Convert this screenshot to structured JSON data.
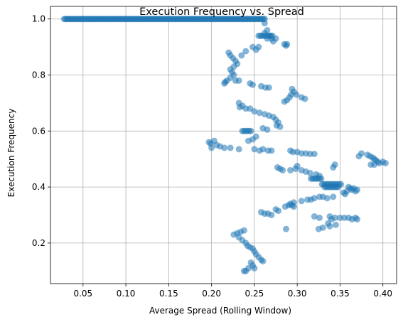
{
  "chart_data": {
    "type": "scatter",
    "title": "Execution Frequency vs. Spread",
    "xlabel": "Average Spread (Rolling Window)",
    "ylabel": "Execution Frequency",
    "xlim": [
      0.012,
      0.416
    ],
    "ylim": [
      0.055,
      1.045
    ],
    "xticks": [
      "0.05",
      "0.10",
      "0.15",
      "0.20",
      "0.25",
      "0.30",
      "0.35",
      "0.40"
    ],
    "yticks": [
      "0.2",
      "0.4",
      "0.6",
      "0.8",
      "1.0"
    ],
    "grid": true,
    "legend": "none",
    "marker_color": "#1f77b4",
    "marker_alpha": 0.55,
    "series": [
      {
        "segments": [
          {
            "x0": 0.028,
            "x1": 0.262,
            "y": 1.0,
            "step": 0.0015
          },
          {
            "x0": 0.255,
            "x1": 0.272,
            "y": 0.94,
            "step": 0.002
          },
          {
            "x0": 0.236,
            "x1": 0.246,
            "y": 0.6,
            "step": 0.002
          },
          {
            "x0": 0.316,
            "x1": 0.328,
            "y": 0.43,
            "step": 0.002
          },
          {
            "x0": 0.329,
            "x1": 0.352,
            "y": 0.41,
            "step": 0.002
          },
          {
            "x0": 0.332,
            "x1": 0.348,
            "y": 0.4,
            "step": 0.002
          }
        ],
        "points": [
          [
            0.262,
            0.985
          ],
          [
            0.265,
            0.96
          ],
          [
            0.262,
            0.95
          ],
          [
            0.268,
            0.94
          ],
          [
            0.265,
            0.93
          ],
          [
            0.27,
            0.93
          ],
          [
            0.272,
            0.92
          ],
          [
            0.275,
            0.93
          ],
          [
            0.285,
            0.91
          ],
          [
            0.288,
            0.91
          ],
          [
            0.287,
            0.905
          ],
          [
            0.248,
            0.9
          ],
          [
            0.255,
            0.9
          ],
          [
            0.252,
            0.89
          ],
          [
            0.24,
            0.885
          ],
          [
            0.235,
            0.87
          ],
          [
            0.22,
            0.88
          ],
          [
            0.222,
            0.87
          ],
          [
            0.225,
            0.86
          ],
          [
            0.228,
            0.85
          ],
          [
            0.23,
            0.84
          ],
          [
            0.226,
            0.83
          ],
          [
            0.222,
            0.82
          ],
          [
            0.224,
            0.81
          ],
          [
            0.226,
            0.8
          ],
          [
            0.222,
            0.79
          ],
          [
            0.218,
            0.78
          ],
          [
            0.216,
            0.775
          ],
          [
            0.215,
            0.77
          ],
          [
            0.228,
            0.78
          ],
          [
            0.232,
            0.78
          ],
          [
            0.245,
            0.77
          ],
          [
            0.248,
            0.765
          ],
          [
            0.258,
            0.76
          ],
          [
            0.263,
            0.755
          ],
          [
            0.267,
            0.755
          ],
          [
            0.294,
            0.75
          ],
          [
            0.296,
            0.74
          ],
          [
            0.293,
            0.73
          ],
          [
            0.299,
            0.73
          ],
          [
            0.291,
            0.72
          ],
          [
            0.288,
            0.71
          ],
          [
            0.285,
            0.705
          ],
          [
            0.305,
            0.72
          ],
          [
            0.309,
            0.715
          ],
          [
            0.232,
            0.7
          ],
          [
            0.236,
            0.69
          ],
          [
            0.233,
            0.685
          ],
          [
            0.24,
            0.68
          ],
          [
            0.245,
            0.68
          ],
          [
            0.25,
            0.67
          ],
          [
            0.256,
            0.665
          ],
          [
            0.262,
            0.66
          ],
          [
            0.267,
            0.655
          ],
          [
            0.272,
            0.65
          ],
          [
            0.275,
            0.64
          ],
          [
            0.278,
            0.63
          ],
          [
            0.276,
            0.62
          ],
          [
            0.28,
            0.615
          ],
          [
            0.26,
            0.61
          ],
          [
            0.265,
            0.605
          ],
          [
            0.252,
            0.58
          ],
          [
            0.248,
            0.57
          ],
          [
            0.243,
            0.565
          ],
          [
            0.197,
            0.56
          ],
          [
            0.199,
            0.555
          ],
          [
            0.203,
            0.565
          ],
          [
            0.206,
            0.55
          ],
          [
            0.2,
            0.54
          ],
          [
            0.21,
            0.545
          ],
          [
            0.215,
            0.54
          ],
          [
            0.222,
            0.54
          ],
          [
            0.232,
            0.535
          ],
          [
            0.25,
            0.535
          ],
          [
            0.256,
            0.53
          ],
          [
            0.26,
            0.535
          ],
          [
            0.266,
            0.53
          ],
          [
            0.27,
            0.53
          ],
          [
            0.292,
            0.53
          ],
          [
            0.295,
            0.525
          ],
          [
            0.3,
            0.525
          ],
          [
            0.305,
            0.52
          ],
          [
            0.31,
            0.52
          ],
          [
            0.315,
            0.518
          ],
          [
            0.32,
            0.518
          ],
          [
            0.277,
            0.47
          ],
          [
            0.28,
            0.465
          ],
          [
            0.283,
            0.46
          ],
          [
            0.292,
            0.46
          ],
          [
            0.298,
            0.465
          ],
          [
            0.3,
            0.475
          ],
          [
            0.305,
            0.46
          ],
          [
            0.31,
            0.455
          ],
          [
            0.315,
            0.45
          ],
          [
            0.322,
            0.445
          ],
          [
            0.326,
            0.44
          ],
          [
            0.342,
            0.47
          ],
          [
            0.344,
            0.48
          ],
          [
            0.36,
            0.4
          ],
          [
            0.362,
            0.395
          ],
          [
            0.364,
            0.39
          ],
          [
            0.366,
            0.395
          ],
          [
            0.368,
            0.385
          ],
          [
            0.37,
            0.39
          ],
          [
            0.354,
            0.38
          ],
          [
            0.356,
            0.375
          ],
          [
            0.358,
            0.385
          ],
          [
            0.342,
            0.365
          ],
          [
            0.335,
            0.36
          ],
          [
            0.33,
            0.365
          ],
          [
            0.326,
            0.365
          ],
          [
            0.32,
            0.36
          ],
          [
            0.316,
            0.355
          ],
          [
            0.312,
            0.355
          ],
          [
            0.305,
            0.35
          ],
          [
            0.296,
            0.345
          ],
          [
            0.292,
            0.34
          ],
          [
            0.294,
            0.335
          ],
          [
            0.29,
            0.335
          ],
          [
            0.286,
            0.33
          ],
          [
            0.296,
            0.33
          ],
          [
            0.275,
            0.32
          ],
          [
            0.278,
            0.315
          ],
          [
            0.258,
            0.31
          ],
          [
            0.262,
            0.305
          ],
          [
            0.266,
            0.305
          ],
          [
            0.27,
            0.3
          ],
          [
            0.32,
            0.295
          ],
          [
            0.326,
            0.29
          ],
          [
            0.338,
            0.295
          ],
          [
            0.34,
            0.285
          ],
          [
            0.344,
            0.29
          ],
          [
            0.35,
            0.29
          ],
          [
            0.355,
            0.29
          ],
          [
            0.36,
            0.29
          ],
          [
            0.364,
            0.285
          ],
          [
            0.368,
            0.29
          ],
          [
            0.37,
            0.285
          ],
          [
            0.336,
            0.27
          ],
          [
            0.338,
            0.26
          ],
          [
            0.345,
            0.265
          ],
          [
            0.33,
            0.255
          ],
          [
            0.325,
            0.25
          ],
          [
            0.287,
            0.25
          ],
          [
            0.375,
            0.52
          ],
          [
            0.382,
            0.515
          ],
          [
            0.385,
            0.51
          ],
          [
            0.388,
            0.505
          ],
          [
            0.39,
            0.5
          ],
          [
            0.392,
            0.495
          ],
          [
            0.394,
            0.49
          ],
          [
            0.396,
            0.485
          ],
          [
            0.4,
            0.49
          ],
          [
            0.403,
            0.485
          ],
          [
            0.386,
            0.48
          ],
          [
            0.39,
            0.48
          ],
          [
            0.372,
            0.51
          ],
          [
            0.226,
            0.23
          ],
          [
            0.23,
            0.235
          ],
          [
            0.234,
            0.24
          ],
          [
            0.238,
            0.245
          ],
          [
            0.232,
            0.22
          ],
          [
            0.236,
            0.21
          ],
          [
            0.24,
            0.2
          ],
          [
            0.242,
            0.19
          ],
          [
            0.245,
            0.185
          ],
          [
            0.248,
            0.18
          ],
          [
            0.25,
            0.17
          ],
          [
            0.252,
            0.16
          ],
          [
            0.255,
            0.15
          ],
          [
            0.258,
            0.14
          ],
          [
            0.26,
            0.135
          ],
          [
            0.246,
            0.13
          ],
          [
            0.248,
            0.12
          ],
          [
            0.25,
            0.11
          ],
          [
            0.243,
            0.11
          ],
          [
            0.24,
            0.1
          ],
          [
            0.238,
            0.1
          ]
        ]
      }
    ]
  }
}
